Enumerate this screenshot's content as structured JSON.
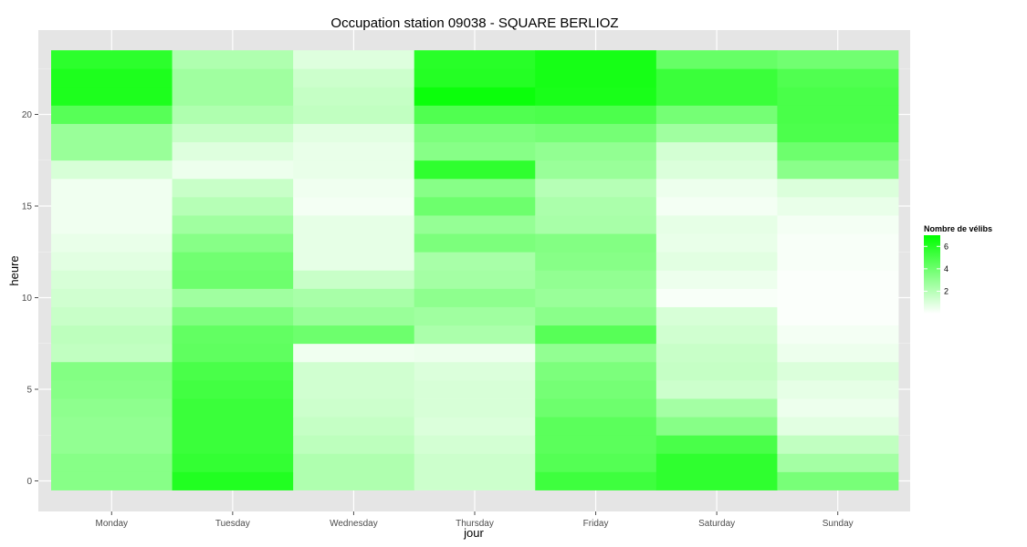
{
  "chart_data": {
    "type": "heatmap",
    "title": "Occupation station 09038 - SQUARE BERLIOZ",
    "xlabel": "jour",
    "ylabel": "heure",
    "categories": [
      "Monday",
      "Tuesday",
      "Wednesday",
      "Thursday",
      "Friday",
      "Saturday",
      "Sunday"
    ],
    "hours": [
      0,
      1,
      2,
      3,
      4,
      5,
      6,
      7,
      8,
      9,
      10,
      11,
      12,
      13,
      14,
      15,
      16,
      17,
      18,
      19,
      20,
      21,
      22,
      23
    ],
    "y_ticks": [
      0,
      5,
      10,
      15,
      20
    ],
    "ylim": [
      -0.5,
      23.5
    ],
    "legend": {
      "title": "Nombre de vélibs",
      "ticks": [
        2,
        4,
        6
      ],
      "range": [
        0,
        7
      ],
      "low_color": "#ffffff",
      "high_color": "#00ff00",
      "placement": "right"
    },
    "grid": true,
    "panel_background": "#e5e5e5",
    "values": [
      [
        3.3,
        3.3,
        3.0,
        3.0,
        3.1,
        3.3,
        3.4,
        1.7,
        1.8,
        1.5,
        1.3,
        1.1,
        0.8,
        0.6,
        0.4,
        0.4,
        0.4,
        1.1,
        2.8,
        2.8,
        4.6,
        6.2,
        6.2,
        5.8
      ],
      [
        6.1,
        5.6,
        5.4,
        5.4,
        5.4,
        5.2,
        5.0,
        4.4,
        4.3,
        3.5,
        2.6,
        4.0,
        3.9,
        3.3,
        2.6,
        2.0,
        1.5,
        0.5,
        0.9,
        1.5,
        2.2,
        2.6,
        2.6,
        2.2
      ],
      [
        2.2,
        2.2,
        1.8,
        1.6,
        1.4,
        1.3,
        1.3,
        0.4,
        4.0,
        2.8,
        2.4,
        1.5,
        0.7,
        0.7,
        0.7,
        0.3,
        0.4,
        0.6,
        0.6,
        0.8,
        1.7,
        1.6,
        1.4,
        0.9
      ],
      [
        1.4,
        1.4,
        1.2,
        1.0,
        1.1,
        1.1,
        1.0,
        0.5,
        2.3,
        2.6,
        3.1,
        2.5,
        2.4,
        3.6,
        2.9,
        4.0,
        3.3,
        5.7,
        3.3,
        3.6,
        4.8,
        6.7,
        6.0,
        5.9
      ],
      [
        5.3,
        4.7,
        4.5,
        4.5,
        4.0,
        3.8,
        3.6,
        3.0,
        4.6,
        3.2,
        2.8,
        3.0,
        3.3,
        3.4,
        2.4,
        2.3,
        2.0,
        2.8,
        3.0,
        3.8,
        4.9,
        6.3,
        6.4,
        6.4
      ],
      [
        5.7,
        5.7,
        5.0,
        3.3,
        2.5,
        1.4,
        1.6,
        1.5,
        1.3,
        1.1,
        0.2,
        0.5,
        0.8,
        0.6,
        0.7,
        0.3,
        0.5,
        1.0,
        1.2,
        2.6,
        3.8,
        5.4,
        5.4,
        4.2
      ],
      [
        3.7,
        2.5,
        1.7,
        0.8,
        0.5,
        0.7,
        1.0,
        0.5,
        0.3,
        0.1,
        0.1,
        0.1,
        0.2,
        0.2,
        0.3,
        0.6,
        1.0,
        3.2,
        4.0,
        4.9,
        5.0,
        5.0,
        4.8,
        3.9
      ]
    ]
  }
}
